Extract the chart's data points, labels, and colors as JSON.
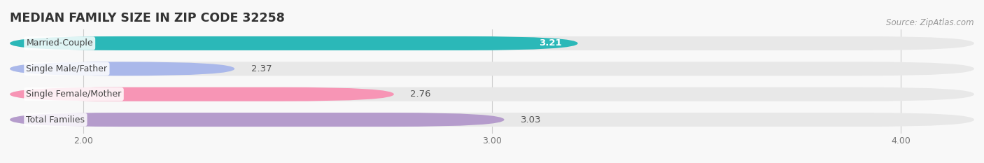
{
  "title": "MEDIAN FAMILY SIZE IN ZIP CODE 32258",
  "source": "Source: ZipAtlas.com",
  "categories": [
    "Married-Couple",
    "Single Male/Father",
    "Single Female/Mother",
    "Total Families"
  ],
  "values": [
    3.21,
    2.37,
    2.76,
    3.03
  ],
  "bar_colors": [
    "#2bb8b8",
    "#aab8ea",
    "#f795b5",
    "#b59ccc"
  ],
  "bar_bg_color": "#e8e8e8",
  "xlim_left": 1.82,
  "xlim_right": 4.18,
  "xticks": [
    2.0,
    3.0,
    4.0
  ],
  "xtick_labels": [
    "2.00",
    "3.00",
    "4.00"
  ],
  "bar_height": 0.55,
  "background_color": "#f8f8f8",
  "title_fontsize": 12.5,
  "label_fontsize": 9,
  "value_fontsize": 9.5,
  "source_fontsize": 8.5,
  "tick_fontsize": 9
}
